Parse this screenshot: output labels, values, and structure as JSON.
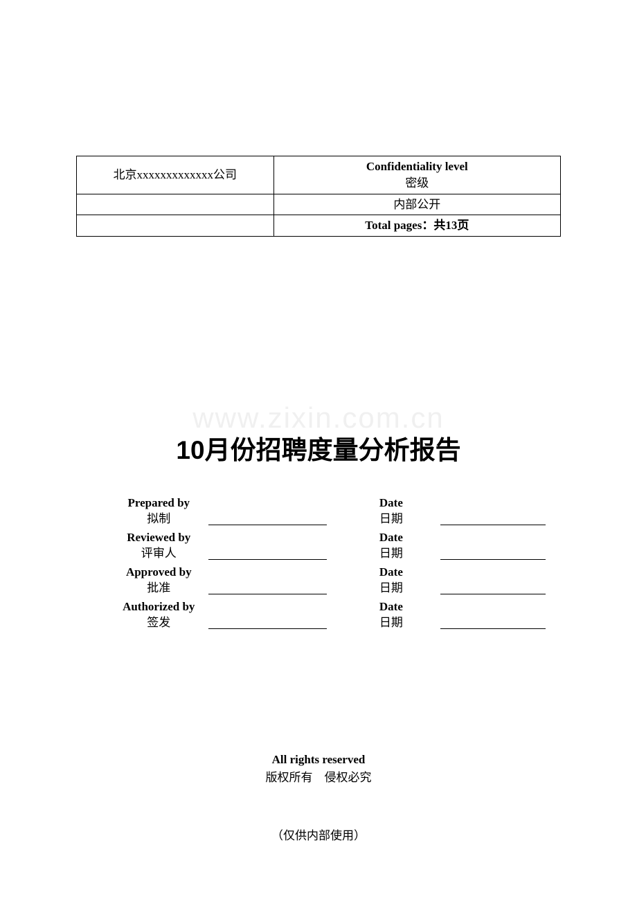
{
  "header": {
    "company": "北京xxxxxxxxxxxxx公司",
    "conf_label_en": "Confidentiality level",
    "conf_label_cn": "密级",
    "conf_value": "内部公开",
    "pages_label": "Total pages：共13页"
  },
  "watermark": "www.zixin.com.cn",
  "title": "10月份招聘度量分析报告",
  "signoff": {
    "rows": [
      {
        "label_en": "Prepared by",
        "label_cn": "拟制",
        "date_en": "Date",
        "date_cn": "日期"
      },
      {
        "label_en": "Reviewed by",
        "label_cn": "评审人",
        "date_en": "Date",
        "date_cn": "日期"
      },
      {
        "label_en": "Approved by",
        "label_cn": "批准",
        "date_en": "Date",
        "date_cn": "日期"
      },
      {
        "label_en": "Authorized by",
        "label_cn": "签发",
        "date_en": "Date",
        "date_cn": "日期"
      }
    ]
  },
  "footer": {
    "rights_en": "All rights reserved",
    "rights_cn": "版权所有　侵权必究",
    "internal": "（仅供内部使用）"
  },
  "style": {
    "page_bg": "#ffffff",
    "text_color": "#000000",
    "border_color": "#000000",
    "watermark_color": "#f0f0f0",
    "title_fontsize": 37,
    "body_fontsize": 17
  }
}
